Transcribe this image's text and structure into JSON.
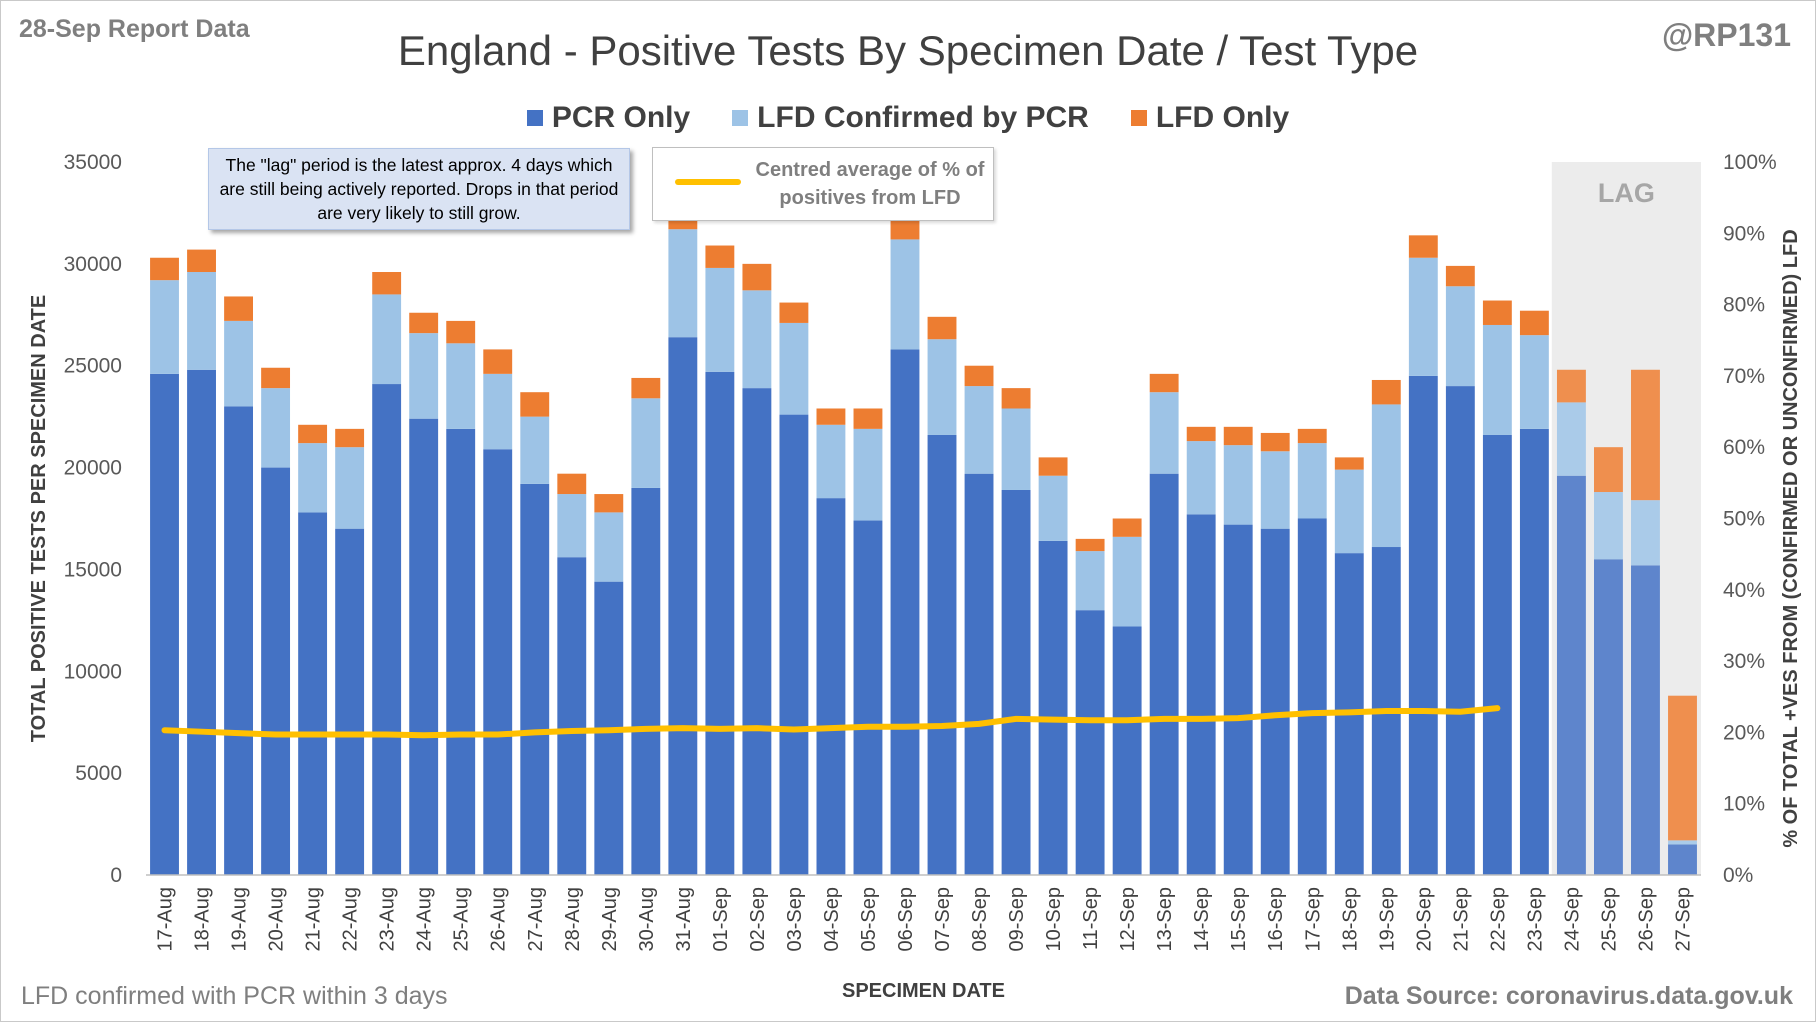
{
  "header": {
    "report_date": "28-Sep Report Data",
    "handle": "@RP131",
    "title": "England - Positive Tests By Specimen Date / Test Type"
  },
  "legend": {
    "pcr_only": "PCR Only",
    "lfd_confirmed": "LFD Confirmed by PCR",
    "lfd_only": "LFD Only"
  },
  "annotations": {
    "lag_note": "The \"lag\" period is the latest approx. 4 days which are still being actively reported. Drops in that period are very likely to still grow.",
    "avg_legend": "Centred average of % of positives from LFD",
    "lag_label": "LAG"
  },
  "footer": {
    "note": "LFD confirmed with PCR within 3 days",
    "source": "Data Source: coronavirus.data.gov.uk"
  },
  "colors": {
    "pcr_only": "#4472c4",
    "lfd_confirmed": "#9dc3e6",
    "lfd_only": "#ed7d31",
    "average_line": "#ffc000",
    "lag_shade": "#ececec"
  },
  "chart_data": {
    "type": "bar",
    "stacked": true,
    "title": "England - Positive Tests By Specimen Date / Test Type",
    "xlabel": "SPECIMEN DATE",
    "ylabel": "TOTAL POSITIVE TESTS PER SPECIMEN DATE",
    "y2label": "% OF TOTAL +VES FROM (CONFIRMED OR UNCONFIRMED) LFD",
    "ylim": [
      0,
      35000
    ],
    "y_ticks": [
      0,
      5000,
      10000,
      15000,
      20000,
      25000,
      30000,
      35000
    ],
    "y2lim": [
      0,
      100
    ],
    "y2_ticks": [
      "0%",
      "10%",
      "20%",
      "30%",
      "40%",
      "50%",
      "60%",
      "70%",
      "80%",
      "90%",
      "100%"
    ],
    "grid": false,
    "legend_position": "top",
    "lag_categories": [
      "24-Sep",
      "25-Sep",
      "26-Sep",
      "27-Sep"
    ],
    "categories": [
      "17-Aug",
      "18-Aug",
      "19-Aug",
      "20-Aug",
      "21-Aug",
      "22-Aug",
      "23-Aug",
      "24-Aug",
      "25-Aug",
      "26-Aug",
      "27-Aug",
      "28-Aug",
      "29-Aug",
      "30-Aug",
      "31-Aug",
      "01-Sep",
      "02-Sep",
      "03-Sep",
      "04-Sep",
      "05-Sep",
      "06-Sep",
      "07-Sep",
      "08-Sep",
      "09-Sep",
      "10-Sep",
      "11-Sep",
      "12-Sep",
      "13-Sep",
      "14-Sep",
      "15-Sep",
      "16-Sep",
      "17-Sep",
      "18-Sep",
      "19-Sep",
      "20-Sep",
      "21-Sep",
      "22-Sep",
      "23-Sep",
      "24-Sep",
      "25-Sep",
      "26-Sep",
      "27-Sep"
    ],
    "series": [
      {
        "name": "PCR Only",
        "values": [
          24600,
          24800,
          23000,
          20000,
          17800,
          17000,
          24100,
          22400,
          21900,
          20900,
          19200,
          15600,
          14400,
          19000,
          26400,
          24700,
          23900,
          22600,
          18500,
          17400,
          25800,
          21600,
          19700,
          18900,
          16400,
          13000,
          12200,
          19700,
          17700,
          17200,
          17000,
          17500,
          15800,
          16100,
          24500,
          24000,
          21600,
          21900,
          19600,
          15500,
          15200,
          1500
        ]
      },
      {
        "name": "LFD Confirmed by PCR",
        "values": [
          4600,
          4800,
          4200,
          3900,
          3400,
          4000,
          4400,
          4200,
          4200,
          3700,
          3300,
          3100,
          3400,
          4400,
          5300,
          5100,
          4800,
          4500,
          3600,
          4500,
          5400,
          4700,
          4300,
          4000,
          3200,
          2900,
          4400,
          4000,
          3600,
          3900,
          3800,
          3700,
          4100,
          7000,
          5800,
          4900,
          5400,
          4600,
          3600,
          3300,
          3200,
          200
        ]
      },
      {
        "name": "LFD Only",
        "values": [
          1100,
          1100,
          1200,
          1000,
          900,
          900,
          1100,
          1000,
          1100,
          1200,
          1200,
          1000,
          900,
          1000,
          1100,
          1100,
          1300,
          1000,
          800,
          1000,
          1000,
          1100,
          1000,
          1000,
          900,
          600,
          900,
          900,
          700,
          900,
          900,
          700,
          600,
          1200,
          1100,
          1000,
          1200,
          1200,
          1600,
          2200,
          6400,
          7100
        ]
      }
    ],
    "average_line": {
      "name": "Centred average of % of positives from LFD",
      "axis": "secondary",
      "values": [
        20.3,
        20.1,
        19.9,
        19.7,
        19.7,
        19.7,
        19.7,
        19.6,
        19.7,
        19.7,
        20.0,
        20.2,
        20.3,
        20.5,
        20.6,
        20.5,
        20.6,
        20.4,
        20.6,
        20.8,
        20.8,
        20.9,
        21.2,
        21.9,
        21.8,
        21.7,
        21.7,
        21.9,
        21.9,
        22.0,
        22.4,
        22.7,
        22.8,
        23.0,
        23.0,
        22.9,
        23.4,
        null,
        null,
        null,
        null,
        null
      ]
    }
  }
}
